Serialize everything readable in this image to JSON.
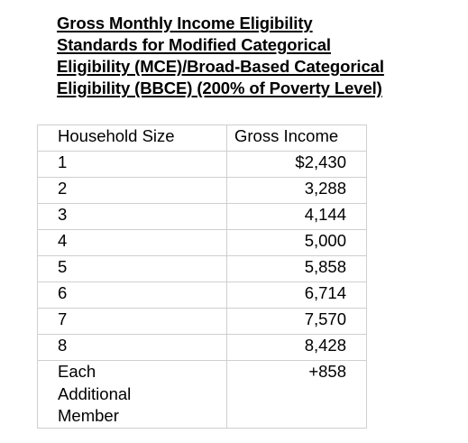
{
  "title": {
    "lines": [
      "Gross Monthly Income Eligibility",
      "Standards for Modified Categorical",
      "Eligibility (MCE)/Broad-Based Categorical",
      "Eligibility (BBCE) (200% of Poverty Level)"
    ]
  },
  "table": {
    "headers": {
      "household_size": "Household Size",
      "gross_income": "Gross Income"
    },
    "rows": [
      {
        "size": "1",
        "income": "$2,430"
      },
      {
        "size": "2",
        "income": "3,288"
      },
      {
        "size": "3",
        "income": "4,144"
      },
      {
        "size": "4",
        "income": "5,000"
      },
      {
        "size": "5",
        "income": "5,858"
      },
      {
        "size": "6",
        "income": "6,714"
      },
      {
        "size": "7",
        "income": "7,570"
      },
      {
        "size": "8",
        "income": "8,428"
      }
    ],
    "additional": {
      "label_lines": [
        "Each",
        "Additional",
        "Member"
      ],
      "income": "+858"
    }
  }
}
